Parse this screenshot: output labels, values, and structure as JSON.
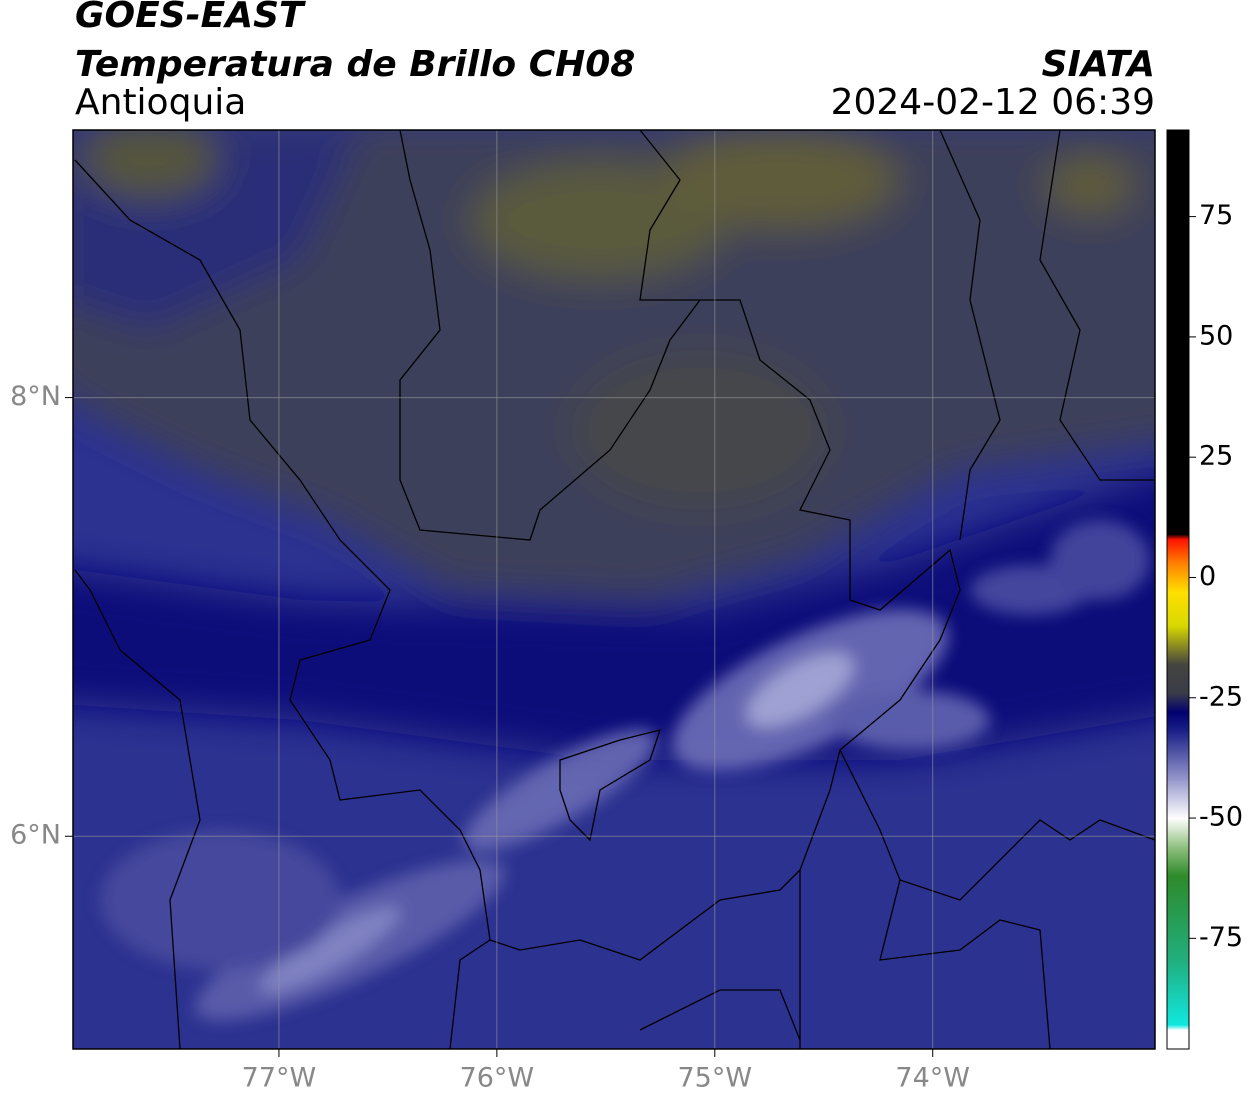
{
  "header": {
    "title": "GOES-EAST",
    "subtitle": "Temperatura de Brillo CH08",
    "region": "Antioquia",
    "source": "SIATA",
    "datetime": "2024-02-12 06:39"
  },
  "map": {
    "lonlim": [
      -77.945,
      -72.98
    ],
    "latlim": [
      5.03,
      9.22
    ],
    "lonticks": [
      {
        "value": -77,
        "label": "77°W"
      },
      {
        "value": -76,
        "label": "76°W"
      },
      {
        "value": -75,
        "label": "75°W"
      },
      {
        "value": -74,
        "label": "74°W"
      }
    ],
    "latticks": [
      {
        "value": 8,
        "label": "8°N"
      },
      {
        "value": 6,
        "label": "6°N"
      }
    ],
    "grid": true
  },
  "colorbar": {
    "lim": [
      -98,
      93
    ],
    "ticks": [
      75,
      50,
      25,
      0,
      -25,
      -50,
      -75
    ],
    "stops": [
      {
        "value": -98,
        "color": "#ffffff"
      },
      {
        "value": -94,
        "color": "#ffffff"
      },
      {
        "value": -93,
        "color": "#10e8e0"
      },
      {
        "value": -80,
        "color": "#20b080"
      },
      {
        "value": -62,
        "color": "#2e8a2a"
      },
      {
        "value": -56,
        "color": "#90c080"
      },
      {
        "value": -50,
        "color": "#ffffff"
      },
      {
        "value": -42,
        "color": "#9698cc"
      },
      {
        "value": -32,
        "color": "#1c2288"
      },
      {
        "value": -28,
        "color": "#000070"
      },
      {
        "value": -24,
        "color": "#3a3c48"
      },
      {
        "value": -18,
        "color": "#444440"
      },
      {
        "value": -10,
        "color": "#d8d800"
      },
      {
        "value": -3,
        "color": "#ffe000"
      },
      {
        "value": 3,
        "color": "#ff8000"
      },
      {
        "value": 8,
        "color": "#ff1000"
      },
      {
        "value": 9,
        "color": "#000000"
      },
      {
        "value": 93,
        "color": "#000000"
      }
    ]
  }
}
